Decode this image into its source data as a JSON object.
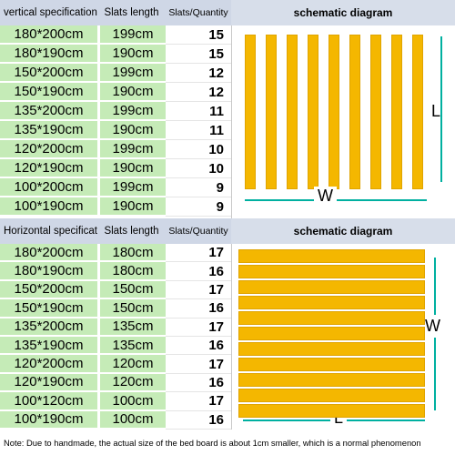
{
  "vertical": {
    "headers": {
      "spec": "vertical specification",
      "length": "Slats length",
      "qty": "Slats/Quantity",
      "diagram": "schematic diagram"
    },
    "rows": [
      {
        "spec": "180*200cm",
        "length": "199cm",
        "qty": "15"
      },
      {
        "spec": "180*190cm",
        "length": "190cm",
        "qty": "15"
      },
      {
        "spec": "150*200cm",
        "length": "199cm",
        "qty": "12"
      },
      {
        "spec": "150*190cm",
        "length": "190cm",
        "qty": "12"
      },
      {
        "spec": "135*200cm",
        "length": "199cm",
        "qty": "11"
      },
      {
        "spec": "135*190cm",
        "length": "190cm",
        "qty": "11"
      },
      {
        "spec": "120*200cm",
        "length": "199cm",
        "qty": "10"
      },
      {
        "spec": "120*190cm",
        "length": "190cm",
        "qty": "10"
      },
      {
        "spec": "100*200cm",
        "length": "199cm",
        "qty": "9"
      },
      {
        "spec": "100*190cm",
        "length": "190cm",
        "qty": "9"
      }
    ],
    "diagram": {
      "width_label": "W",
      "length_label": "L",
      "slat_color": "#f4b700",
      "slat_count_drawn": 9
    }
  },
  "horizontal": {
    "headers": {
      "spec": "Horizontal specification",
      "length": "Slats length",
      "qty": "Slats/Quantity",
      "diagram": "schematic diagram"
    },
    "rows": [
      {
        "spec": "180*200cm",
        "length": "180cm",
        "qty": "17"
      },
      {
        "spec": "180*190cm",
        "length": "180cm",
        "qty": "16"
      },
      {
        "spec": "150*200cm",
        "length": "150cm",
        "qty": "17"
      },
      {
        "spec": "150*190cm",
        "length": "150cm",
        "qty": "16"
      },
      {
        "spec": "135*200cm",
        "length": "135cm",
        "qty": "17"
      },
      {
        "spec": "135*190cm",
        "length": "135cm",
        "qty": "16"
      },
      {
        "spec": "120*200cm",
        "length": "120cm",
        "qty": "17"
      },
      {
        "spec": "120*190cm",
        "length": "120cm",
        "qty": "16"
      },
      {
        "spec": "100*120cm",
        "length": "100cm",
        "qty": "17"
      },
      {
        "spec": "100*190cm",
        "length": "100cm",
        "qty": "16"
      }
    ],
    "diagram": {
      "width_label": "W",
      "length_label": "L",
      "slat_color": "#f4b700",
      "slat_count_drawn": 11
    }
  },
  "colors": {
    "header_bg": "#cfd7e6",
    "cell_green": "#c5ebb7",
    "slat_yellow": "#f4b700",
    "dimension_line": "#00b0a0"
  },
  "note": "Note: Due to handmade, the actual size of the bed board is about 1cm smaller, which is a normal phenomenon"
}
